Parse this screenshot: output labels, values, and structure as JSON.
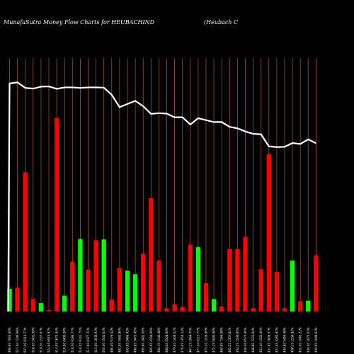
{
  "header": {
    "title": "MunafaSutra  Money Flow  Charts for HEUBACHIND",
    "subtitle": "(Heubach C"
  },
  "colors": {
    "background": "#000000",
    "grid": "#a0522d",
    "up_bar": "#00ff00",
    "down_bar": "#ff0000",
    "price_line": "#ffffff"
  },
  "chart_data": {
    "type": "bar",
    "title": "MunafaSutra  Money Flow  Charts for HEUBACHIND",
    "grid": true,
    "ylim": [
      0,
      100
    ],
    "categories": [
      "496.60 7063.69%",
      "527.00 1146.98%",
      "527.00 9114.77%",
      "516.00 2401.39%",
      "519.50 1157.67%",
      "524.65 6515.97%",
      "514.90 1673.44%",
      "516.90 6490.08%",
      "516.00 9184.77%",
      "516.45 9141.75%",
      "517.80 8377.72%",
      "515.60 1938.93%",
      "505.00 1500.63%",
      "486.45 5178.54%",
      "492.00 3460.86%",
      "505.85 3466.43%",
      "496.85 3473.45%",
      "495.80 2492.09%",
      "495.65 4194.09%",
      "494.70 1140.48%",
      "488.40 4508.09%",
      "479.45 1408.02%",
      "476.85 1054.14%",
      "467.15 1064.75%",
      "477.20 6117.77%",
      "475.20 1206.49%",
      "472.25 5080.96%",
      "469.85 7346.98%",
      "465.25 1307.81%",
      "454.55 1536.85%",
      "449.00 6575.90%",
      "448.80 3120.84%",
      "431.00 1332.40%",
      "431.65 1606.07%",
      "437.45 3269.82%",
      "440.80 5456.48%",
      "438.15 1156.92%",
      "432.00 1045.22%",
      "440.00 1075.63%",
      "439.95 1089.63%"
    ],
    "series": [
      {
        "values": [
          10,
          10.5,
          61.5,
          5.5,
          3.7,
          0.6,
          85.5,
          7,
          22,
          32,
          18.5,
          31.5,
          31.8,
          5.3,
          19.2,
          18,
          16.5,
          25.5,
          50,
          22.5,
          1.5,
          3.2,
          2,
          29.5,
          28.5,
          12.5,
          5.5,
          2.2,
          27.5,
          27.5,
          33,
          1.5,
          18.7,
          69.5,
          17.5,
          1.5,
          22.5,
          4.5,
          4.8,
          24.8
        ],
        "direction": [
          "up",
          "down",
          "down",
          "down",
          "up",
          "down",
          "down",
          "up",
          "down",
          "up",
          "down",
          "down",
          "up",
          "down",
          "down",
          "up",
          "up",
          "down",
          "down",
          "down",
          "down",
          "down",
          "down",
          "down",
          "up",
          "down",
          "up",
          "down",
          "down",
          "down",
          "down",
          "down",
          "down",
          "down",
          "down",
          "down",
          "up",
          "down",
          "up",
          "down"
        ]
      },
      {
        "type": "line",
        "values": [
          100,
          100.5,
          98.2,
          97.9,
          98.7,
          98.8,
          97.8,
          98.4,
          98.4,
          98.2,
          98.4,
          98.4,
          98.3,
          95.3,
          90.2,
          91.5,
          92.8,
          90.6,
          87.4,
          87.7,
          87.5,
          86,
          86,
          83,
          85.6,
          84.8,
          84,
          84,
          82,
          81.4,
          80.1,
          79.1,
          78.9,
          73.9,
          73.6,
          73.7,
          75.3,
          74.9,
          76.8,
          75.2
        ]
      }
    ]
  }
}
